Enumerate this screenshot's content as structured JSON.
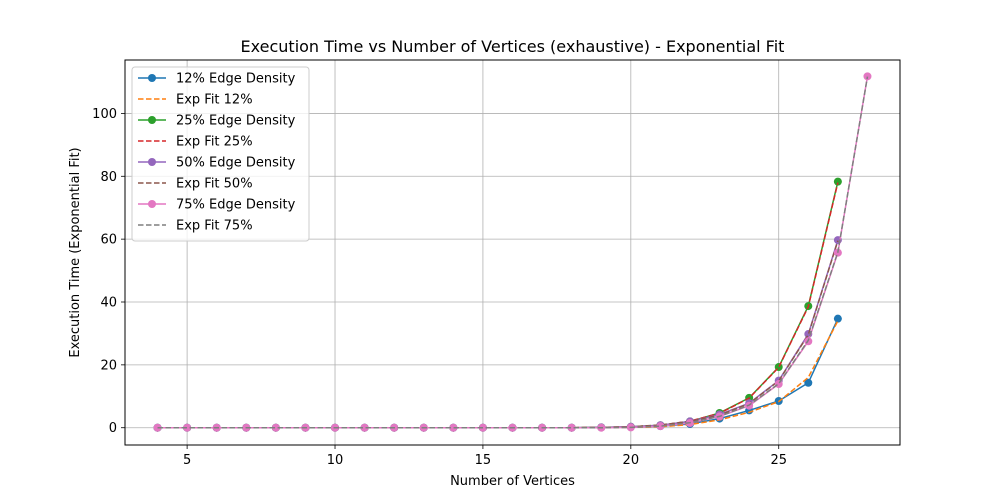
{
  "chart_data": {
    "type": "line",
    "title": "Execution Time vs Number of Vertices (exhaustive) - Exponential Fit",
    "xlabel": "Number of Vertices",
    "ylabel": "Execution Time (Exponential Fit)",
    "xlim": [
      2.9,
      29.1
    ],
    "ylim": [
      -5.5,
      117
    ],
    "xticks": [
      5,
      10,
      15,
      20,
      25
    ],
    "yticks": [
      0,
      20,
      40,
      60,
      80,
      100
    ],
    "grid": true,
    "legend_position": "top-left",
    "series": [
      {
        "name": "12% Edge Density",
        "kind": "data",
        "color": "#1f77b4",
        "x": [
          4,
          5,
          6,
          7,
          8,
          9,
          10,
          11,
          12,
          13,
          14,
          15,
          16,
          17,
          18,
          19,
          20,
          21,
          22,
          23,
          24,
          25,
          26,
          27
        ],
        "y": [
          0,
          0,
          0,
          0,
          0,
          0,
          0,
          0,
          0,
          0,
          0,
          0,
          0,
          0,
          0,
          0.1,
          0.2,
          0.5,
          1.2,
          2.9,
          5.5,
          8.5,
          14.3,
          34.7
        ]
      },
      {
        "name": "Exp Fit 12%",
        "kind": "fit",
        "color": "#ff7f0e",
        "x": [
          4,
          5,
          6,
          7,
          8,
          9,
          10,
          11,
          12,
          13,
          14,
          15,
          16,
          17,
          18,
          19,
          20,
          21,
          22,
          23,
          24,
          25,
          26,
          27
        ],
        "y": [
          0,
          0,
          0,
          0,
          0,
          0,
          0,
          0,
          0,
          0,
          0,
          0,
          0,
          0,
          0,
          0.05,
          0.1,
          0.3,
          1.0,
          2.5,
          4.9,
          8.3,
          16.0,
          34.0
        ]
      },
      {
        "name": "25% Edge Density",
        "kind": "data",
        "color": "#2ca02c",
        "x": [
          4,
          5,
          6,
          7,
          8,
          9,
          10,
          11,
          12,
          13,
          14,
          15,
          16,
          17,
          18,
          19,
          20,
          21,
          22,
          23,
          24,
          25,
          26,
          27
        ],
        "y": [
          0,
          0,
          0,
          0,
          0,
          0,
          0,
          0,
          0,
          0,
          0,
          0,
          0,
          0,
          0,
          0.1,
          0.3,
          0.8,
          2.0,
          4.7,
          9.5,
          19.3,
          38.7,
          78.3
        ]
      },
      {
        "name": "Exp Fit 25%",
        "kind": "fit",
        "color": "#d62728",
        "x": [
          4,
          5,
          6,
          7,
          8,
          9,
          10,
          11,
          12,
          13,
          14,
          15,
          16,
          17,
          18,
          19,
          20,
          21,
          22,
          23,
          24,
          25,
          26,
          27
        ],
        "y": [
          0,
          0,
          0,
          0,
          0,
          0,
          0,
          0,
          0,
          0,
          0,
          0,
          0,
          0,
          0,
          0.1,
          0.3,
          0.8,
          2.1,
          4.6,
          9.4,
          19.2,
          38.5,
          78.0
        ]
      },
      {
        "name": "50% Edge Density",
        "kind": "data",
        "color": "#9467bd",
        "x": [
          4,
          5,
          6,
          7,
          8,
          9,
          10,
          11,
          12,
          13,
          14,
          15,
          16,
          17,
          18,
          19,
          20,
          21,
          22,
          23,
          24,
          25,
          26,
          27
        ],
        "y": [
          0,
          0,
          0,
          0,
          0,
          0,
          0,
          0,
          0,
          0,
          0,
          0,
          0,
          0,
          0,
          0.1,
          0.3,
          0.8,
          2.0,
          4.2,
          7.8,
          15.0,
          29.8,
          59.7
        ]
      },
      {
        "name": "Exp Fit 50%",
        "kind": "fit",
        "color": "#8c564b",
        "x": [
          4,
          5,
          6,
          7,
          8,
          9,
          10,
          11,
          12,
          13,
          14,
          15,
          16,
          17,
          18,
          19,
          20,
          21,
          22,
          23,
          24,
          25,
          26,
          27
        ],
        "y": [
          0,
          0,
          0,
          0,
          0,
          0,
          0,
          0,
          0,
          0,
          0,
          0,
          0,
          0,
          0,
          0.1,
          0.3,
          0.9,
          2.0,
          4.0,
          7.7,
          14.9,
          29.6,
          59.5
        ]
      },
      {
        "name": "75% Edge Density",
        "kind": "data",
        "color": "#e377c2",
        "x": [
          4,
          5,
          6,
          7,
          8,
          9,
          10,
          11,
          12,
          13,
          14,
          15,
          16,
          17,
          18,
          19,
          20,
          21,
          22,
          23,
          24,
          25,
          26,
          27,
          28
        ],
        "y": [
          0,
          0,
          0,
          0,
          0,
          0,
          0,
          0,
          0,
          0,
          0,
          0,
          0,
          0,
          0,
          0,
          0.1,
          0.5,
          1.5,
          3.6,
          7.0,
          13.9,
          27.5,
          55.7,
          111.8
        ]
      },
      {
        "name": "Exp Fit 75%",
        "kind": "fit",
        "color": "#7f7f7f",
        "x": [
          4,
          5,
          6,
          7,
          8,
          9,
          10,
          11,
          12,
          13,
          14,
          15,
          16,
          17,
          18,
          19,
          20,
          21,
          22,
          23,
          24,
          25,
          26,
          27,
          28
        ],
        "y": [
          0,
          0,
          0,
          0,
          0,
          0,
          0,
          0,
          0,
          0,
          0,
          0,
          0,
          0,
          0,
          0,
          0.1,
          0.5,
          1.6,
          3.6,
          7.2,
          14.0,
          27.8,
          55.9,
          111.7
        ]
      }
    ]
  }
}
